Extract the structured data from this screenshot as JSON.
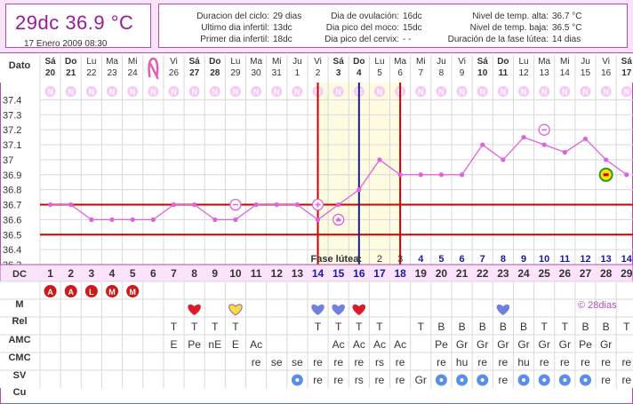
{
  "header": {
    "title": "29dc  36.9  °C",
    "date": "17 Enero 2009 08:30",
    "info": [
      {
        "label": "Duracion del ciclo:",
        "value": "29 dias"
      },
      {
        "label": "Ultimo dia infertil:",
        "value": "13dc"
      },
      {
        "label": "Primer dia infertil:",
        "value": "18dc"
      },
      {
        "label": "Dia de ovulación:",
        "value": "16dc"
      },
      {
        "label": "Dia pico del moco:",
        "value": "15dc"
      },
      {
        "label": "Dia pico del cervix:",
        "value": "- -"
      },
      {
        "label": "Nivel de temp. alta:",
        "value": "36.7 °C"
      },
      {
        "label": "Nivel de temp. baja:",
        "value": "36.5 °C"
      },
      {
        "label": "Duración de la fase lútea:",
        "value": "14 dias"
      }
    ]
  },
  "labels": {
    "dato": "Dato",
    "dc": "DC",
    "m": "M",
    "rel": "Rel",
    "amc": "AMC",
    "cmc": "CMC",
    "sv": "SV",
    "cu": "Cu",
    "fase_lutea": "Fase lútea:",
    "copyright": "© 28dias",
    "n": "N"
  },
  "colors": {
    "accent": "#b04fb0",
    "line": "#e060e0",
    "threshold": "#cc0000",
    "ovulation": "#1a1aa0",
    "lutea_fill": "#fffbe0",
    "header_bg": "#fbe3fb"
  },
  "chart_data": {
    "type": "line",
    "x": [
      1,
      2,
      3,
      4,
      5,
      6,
      7,
      8,
      9,
      10,
      11,
      12,
      13,
      14,
      15,
      16,
      17,
      18,
      19,
      20,
      21,
      22,
      23,
      24,
      25,
      26,
      27,
      28,
      29
    ],
    "weekdays": [
      "Sá",
      "Do",
      "Lu",
      "Ma",
      "Mi",
      "",
      "Vi",
      "Sá",
      "Do",
      "Lu",
      "Ma",
      "Mi",
      "Ju",
      "Vi",
      "Sá",
      "Do",
      "Lu",
      "Ma",
      "Mi",
      "Ju",
      "Vi",
      "Sá",
      "Do",
      "Lu",
      "Ma",
      "Mi",
      "Ju",
      "Vi",
      "Sá"
    ],
    "dates": [
      "20",
      "21",
      "22",
      "23",
      "24",
      "",
      "26",
      "27",
      "28",
      "29",
      "30",
      "31",
      "1",
      "2",
      "3",
      "4",
      "5",
      "6",
      "7",
      "8",
      "9",
      "10",
      "11",
      "12",
      "13",
      "14",
      "15",
      "16",
      "17"
    ],
    "temps": [
      36.7,
      36.7,
      36.6,
      36.6,
      36.6,
      36.6,
      36.7,
      36.7,
      36.6,
      36.6,
      36.7,
      36.7,
      36.7,
      36.6,
      36.7,
      36.8,
      37.0,
      36.9,
      36.9,
      36.9,
      36.9,
      37.1,
      37.0,
      37.15,
      37.1,
      37.05,
      37.14,
      37.0,
      36.9
    ],
    "offline_points": [
      {
        "x": 15,
        "y": 36.6
      },
      {
        "x": 25,
        "y": 37.2
      }
    ],
    "marker_points": [
      {
        "x": 10,
        "y": 36.7,
        "kind": "minus"
      },
      {
        "x": 14,
        "y": 36.7,
        "kind": "plus"
      },
      {
        "x": 28,
        "y": 36.9,
        "kind": "sick"
      }
    ],
    "ylim": [
      36.3,
      37.45
    ],
    "yticks": [
      37.4,
      37.3,
      37.2,
      37.1,
      37.0,
      36.9,
      36.8,
      36.7,
      36.6,
      36.5,
      36.4,
      36.3
    ],
    "ytick_labels": [
      "37.4",
      "37.3",
      "37.2",
      "37.1",
      "37",
      "36.9",
      "36.8",
      "36.7",
      "36.6",
      "36.5",
      "36.4",
      "36.3"
    ],
    "high_level": 36.7,
    "low_level": 36.5,
    "ovulation_day": 16,
    "lutea_start_day": 14,
    "lutea_end_day": 18,
    "lutea_numbers": [
      {
        "x": 16,
        "n": "1"
      },
      {
        "x": 17,
        "n": "2"
      },
      {
        "x": 18,
        "n": "3"
      },
      {
        "x": 19,
        "n": "4"
      },
      {
        "x": 20,
        "n": "5"
      },
      {
        "x": 21,
        "n": "6"
      },
      {
        "x": 22,
        "n": "7"
      },
      {
        "x": 23,
        "n": "8"
      },
      {
        "x": 24,
        "n": "9"
      },
      {
        "x": 25,
        "n": "10"
      },
      {
        "x": 26,
        "n": "11"
      },
      {
        "x": 27,
        "n": "12"
      },
      {
        "x": 28,
        "n": "13"
      },
      {
        "x": 29,
        "n": "14"
      }
    ],
    "n_days": [
      1,
      2,
      3,
      4,
      5,
      6,
      7,
      8,
      9,
      10,
      11,
      12,
      13,
      14,
      15,
      16,
      17,
      18,
      19,
      20,
      21,
      22,
      23,
      24,
      25,
      26,
      27,
      28,
      29
    ],
    "ribbon_day": 6,
    "m_row": [
      {
        "x": 1,
        "v": "A"
      },
      {
        "x": 2,
        "v": "A"
      },
      {
        "x": 3,
        "v": "L"
      },
      {
        "x": 4,
        "v": "M"
      },
      {
        "x": 5,
        "v": "M"
      }
    ],
    "rel_row": [
      {
        "x": 8,
        "c": "red"
      },
      {
        "x": 10,
        "c": "yellow"
      },
      {
        "x": 14,
        "c": "blue"
      },
      {
        "x": 15,
        "c": "blue"
      },
      {
        "x": 16,
        "c": "red"
      },
      {
        "x": 23,
        "c": "blue"
      }
    ],
    "amc_row": [
      {
        "x": 7,
        "v": "T"
      },
      {
        "x": 8,
        "v": "T"
      },
      {
        "x": 9,
        "v": "T"
      },
      {
        "x": 10,
        "v": "T"
      },
      {
        "x": 14,
        "v": "T"
      },
      {
        "x": 15,
        "v": "T"
      },
      {
        "x": 16,
        "v": "T"
      },
      {
        "x": 17,
        "v": "T"
      },
      {
        "x": 19,
        "v": "T"
      },
      {
        "x": 20,
        "v": "B"
      },
      {
        "x": 21,
        "v": "B"
      },
      {
        "x": 22,
        "v": "B"
      },
      {
        "x": 23,
        "v": "B"
      },
      {
        "x": 24,
        "v": "B"
      },
      {
        "x": 25,
        "v": "T"
      },
      {
        "x": 26,
        "v": "T"
      },
      {
        "x": 27,
        "v": "B"
      },
      {
        "x": 28,
        "v": "B"
      },
      {
        "x": 29,
        "v": "T"
      }
    ],
    "cmc_row": [
      {
        "x": 7,
        "v": "E"
      },
      {
        "x": 8,
        "v": "Pe"
      },
      {
        "x": 9,
        "v": "nE"
      },
      {
        "x": 10,
        "v": "E"
      },
      {
        "x": 11,
        "v": "Ac"
      },
      {
        "x": 15,
        "v": "Ac"
      },
      {
        "x": 16,
        "v": "Ac"
      },
      {
        "x": 17,
        "v": "Ac"
      },
      {
        "x": 18,
        "v": "Ac"
      },
      {
        "x": 20,
        "v": "Pe"
      },
      {
        "x": 21,
        "v": "Gr"
      },
      {
        "x": 22,
        "v": "Gr"
      },
      {
        "x": 23,
        "v": "Gr"
      },
      {
        "x": 24,
        "v": "Gr"
      },
      {
        "x": 25,
        "v": "Gr"
      },
      {
        "x": 26,
        "v": "Gr"
      },
      {
        "x": 27,
        "v": "Pe"
      },
      {
        "x": 28,
        "v": "Gr"
      }
    ],
    "sv_row": [
      {
        "x": 11,
        "v": "re"
      },
      {
        "x": 12,
        "v": "se"
      },
      {
        "x": 13,
        "v": "se"
      },
      {
        "x": 14,
        "v": "re"
      },
      {
        "x": 15,
        "v": "re"
      },
      {
        "x": 16,
        "v": "re"
      },
      {
        "x": 17,
        "v": "rs"
      },
      {
        "x": 18,
        "v": "re"
      },
      {
        "x": 20,
        "v": "re"
      },
      {
        "x": 21,
        "v": "hu"
      },
      {
        "x": 22,
        "v": "re"
      },
      {
        "x": 23,
        "v": "re"
      },
      {
        "x": 24,
        "v": "hu"
      },
      {
        "x": 25,
        "v": "re"
      },
      {
        "x": 26,
        "v": "re"
      },
      {
        "x": 27,
        "v": "re"
      },
      {
        "x": 28,
        "v": "re"
      },
      {
        "x": 29,
        "v": "re"
      }
    ],
    "cu_row": [
      {
        "x": 13,
        "v": "dot"
      },
      {
        "x": 20,
        "v": "dot"
      },
      {
        "x": 21,
        "v": "dot"
      },
      {
        "x": 22,
        "v": "dot"
      },
      {
        "x": 24,
        "v": "dot"
      },
      {
        "x": 25,
        "v": "dot"
      },
      {
        "x": 26,
        "v": "dot"
      },
      {
        "x": 27,
        "v": "dot"
      }
    ],
    "cu_text": [
      {
        "x": 14,
        "v": "re"
      },
      {
        "x": 15,
        "v": "re"
      },
      {
        "x": 16,
        "v": "rs"
      },
      {
        "x": 17,
        "v": "re"
      },
      {
        "x": 18,
        "v": "re"
      },
      {
        "x": 19,
        "v": "Gr"
      },
      {
        "x": 23,
        "v": "re"
      },
      {
        "x": 28,
        "v": "re"
      },
      {
        "x": 29,
        "v": "re"
      }
    ]
  }
}
